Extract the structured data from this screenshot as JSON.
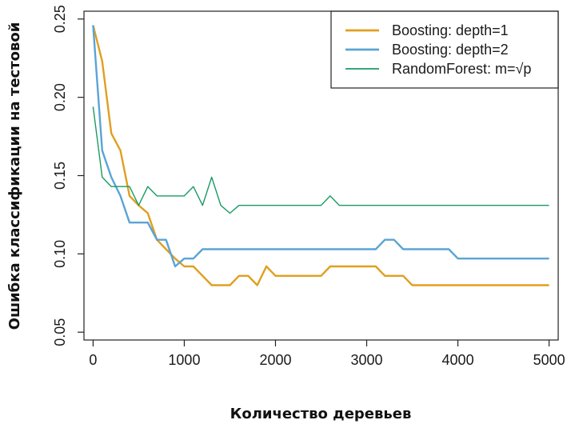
{
  "chart_data": {
    "type": "line",
    "title": "",
    "xlabel": "Количество деревьев",
    "ylabel": "Ошибка классификации на тестовой",
    "xlim": [
      -100,
      5100
    ],
    "ylim": [
      0.045,
      0.255
    ],
    "xticks": [
      0,
      1000,
      2000,
      3000,
      4000,
      5000
    ],
    "xtick_labels": [
      "0",
      "1000",
      "2000",
      "3000",
      "4000",
      "5000"
    ],
    "yticks": [
      0.05,
      0.1,
      0.15,
      0.2,
      0.25
    ],
    "ytick_labels": [
      "0.05",
      "0.10",
      "0.15",
      "0.20",
      "0.25"
    ],
    "grid": false,
    "legend_position": "top-right",
    "series": [
      {
        "name": "Boosting: depth=1",
        "color": "#E09F1F",
        "width": 2.4,
        "x": [
          0,
          100,
          200,
          300,
          400,
          500,
          600,
          700,
          800,
          900,
          1000,
          1100,
          1200,
          1300,
          1400,
          1500,
          1600,
          1700,
          1800,
          1900,
          2000,
          2100,
          2200,
          2300,
          2400,
          2500,
          2600,
          2700,
          2800,
          2900,
          3000,
          3100,
          3200,
          3300,
          3400,
          3500,
          3600,
          3700,
          3800,
          3900,
          4000,
          4100,
          4200,
          4300,
          4400,
          4500,
          4600,
          4700,
          4800,
          4900,
          5000
        ],
        "y": [
          0.246,
          0.223,
          0.177,
          0.166,
          0.137,
          0.131,
          0.126,
          0.109,
          0.103,
          0.097,
          0.092,
          0.092,
          0.086,
          0.08,
          0.08,
          0.08,
          0.086,
          0.086,
          0.08,
          0.092,
          0.086,
          0.086,
          0.086,
          0.086,
          0.086,
          0.086,
          0.092,
          0.092,
          0.092,
          0.092,
          0.092,
          0.092,
          0.086,
          0.086,
          0.086,
          0.08,
          0.08,
          0.08,
          0.08,
          0.08,
          0.08,
          0.08,
          0.08,
          0.08,
          0.08,
          0.08,
          0.08,
          0.08,
          0.08,
          0.08,
          0.08
        ]
      },
      {
        "name": "Boosting: depth=2",
        "color": "#5BA4D4",
        "width": 2.4,
        "x": [
          0,
          100,
          200,
          300,
          400,
          500,
          600,
          700,
          800,
          900,
          1000,
          1100,
          1200,
          1300,
          1400,
          1500,
          1600,
          1700,
          1800,
          1900,
          2000,
          2100,
          2200,
          2300,
          2400,
          2500,
          2600,
          2700,
          2800,
          2900,
          3000,
          3100,
          3200,
          3300,
          3400,
          3500,
          3600,
          3700,
          3800,
          3900,
          4000,
          4100,
          4200,
          4300,
          4400,
          4500,
          4600,
          4700,
          4800,
          4900,
          5000
        ],
        "y": [
          0.246,
          0.166,
          0.149,
          0.137,
          0.12,
          0.12,
          0.12,
          0.109,
          0.109,
          0.092,
          0.097,
          0.097,
          0.103,
          0.103,
          0.103,
          0.103,
          0.103,
          0.103,
          0.103,
          0.103,
          0.103,
          0.103,
          0.103,
          0.103,
          0.103,
          0.103,
          0.103,
          0.103,
          0.103,
          0.103,
          0.103,
          0.103,
          0.109,
          0.109,
          0.103,
          0.103,
          0.103,
          0.103,
          0.103,
          0.103,
          0.097,
          0.097,
          0.097,
          0.097,
          0.097,
          0.097,
          0.097,
          0.097,
          0.097,
          0.097,
          0.097
        ]
      },
      {
        "name": "RandomForest: m=√p",
        "color": "#1A9B63",
        "width": 1.4,
        "x": [
          0,
          100,
          200,
          300,
          400,
          500,
          600,
          700,
          800,
          900,
          1000,
          1100,
          1200,
          1300,
          1400,
          1500,
          1600,
          1700,
          1800,
          1900,
          2000,
          2100,
          2200,
          2300,
          2400,
          2500,
          2600,
          2700,
          2800,
          2900,
          3000,
          3100,
          3200,
          3300,
          3400,
          3500,
          3600,
          3700,
          3800,
          3900,
          4000,
          4100,
          4200,
          4300,
          4400,
          4500,
          4600,
          4700,
          4800,
          4900,
          5000
        ],
        "y": [
          0.194,
          0.149,
          0.143,
          0.143,
          0.143,
          0.131,
          0.143,
          0.137,
          0.137,
          0.137,
          0.137,
          0.143,
          0.131,
          0.149,
          0.131,
          0.126,
          0.131,
          0.131,
          0.131,
          0.131,
          0.131,
          0.131,
          0.131,
          0.131,
          0.131,
          0.131,
          0.137,
          0.131,
          0.131,
          0.131,
          0.131,
          0.131,
          0.131,
          0.131,
          0.131,
          0.131,
          0.131,
          0.131,
          0.131,
          0.131,
          0.131,
          0.131,
          0.131,
          0.131,
          0.131,
          0.131,
          0.131,
          0.131,
          0.131,
          0.131,
          0.131
        ]
      }
    ]
  }
}
